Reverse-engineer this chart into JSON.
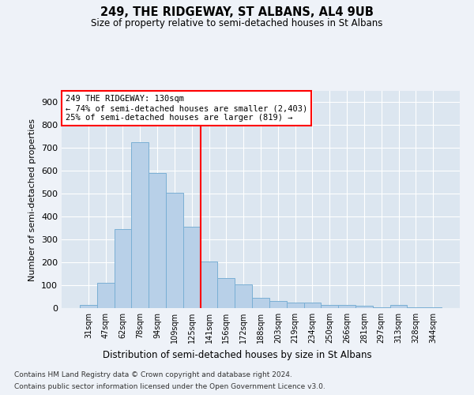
{
  "title1": "249, THE RIDGEWAY, ST ALBANS, AL4 9UB",
  "title2": "Size of property relative to semi-detached houses in St Albans",
  "xlabel": "Distribution of semi-detached houses by size in St Albans",
  "ylabel": "Number of semi-detached properties",
  "categories": [
    "31sqm",
    "47sqm",
    "62sqm",
    "78sqm",
    "94sqm",
    "109sqm",
    "125sqm",
    "141sqm",
    "156sqm",
    "172sqm",
    "188sqm",
    "203sqm",
    "219sqm",
    "234sqm",
    "250sqm",
    "266sqm",
    "281sqm",
    "297sqm",
    "313sqm",
    "328sqm",
    "344sqm"
  ],
  "values": [
    15,
    110,
    345,
    725,
    590,
    505,
    355,
    205,
    130,
    105,
    45,
    30,
    25,
    25,
    15,
    15,
    10,
    5,
    15,
    5,
    5
  ],
  "bar_color": "#b8d0e8",
  "bar_edge_color": "#7aafd4",
  "red_line_index": 6,
  "annotation_text": "249 THE RIDGEWAY: 130sqm\n← 74% of semi-detached houses are smaller (2,403)\n25% of semi-detached houses are larger (819) →",
  "ylim": [
    0,
    950
  ],
  "yticks": [
    0,
    100,
    200,
    300,
    400,
    500,
    600,
    700,
    800,
    900
  ],
  "footer1": "Contains HM Land Registry data © Crown copyright and database right 2024.",
  "footer2": "Contains public sector information licensed under the Open Government Licence v3.0.",
  "background_color": "#eef2f8",
  "plot_bg_color": "#dce6f0"
}
